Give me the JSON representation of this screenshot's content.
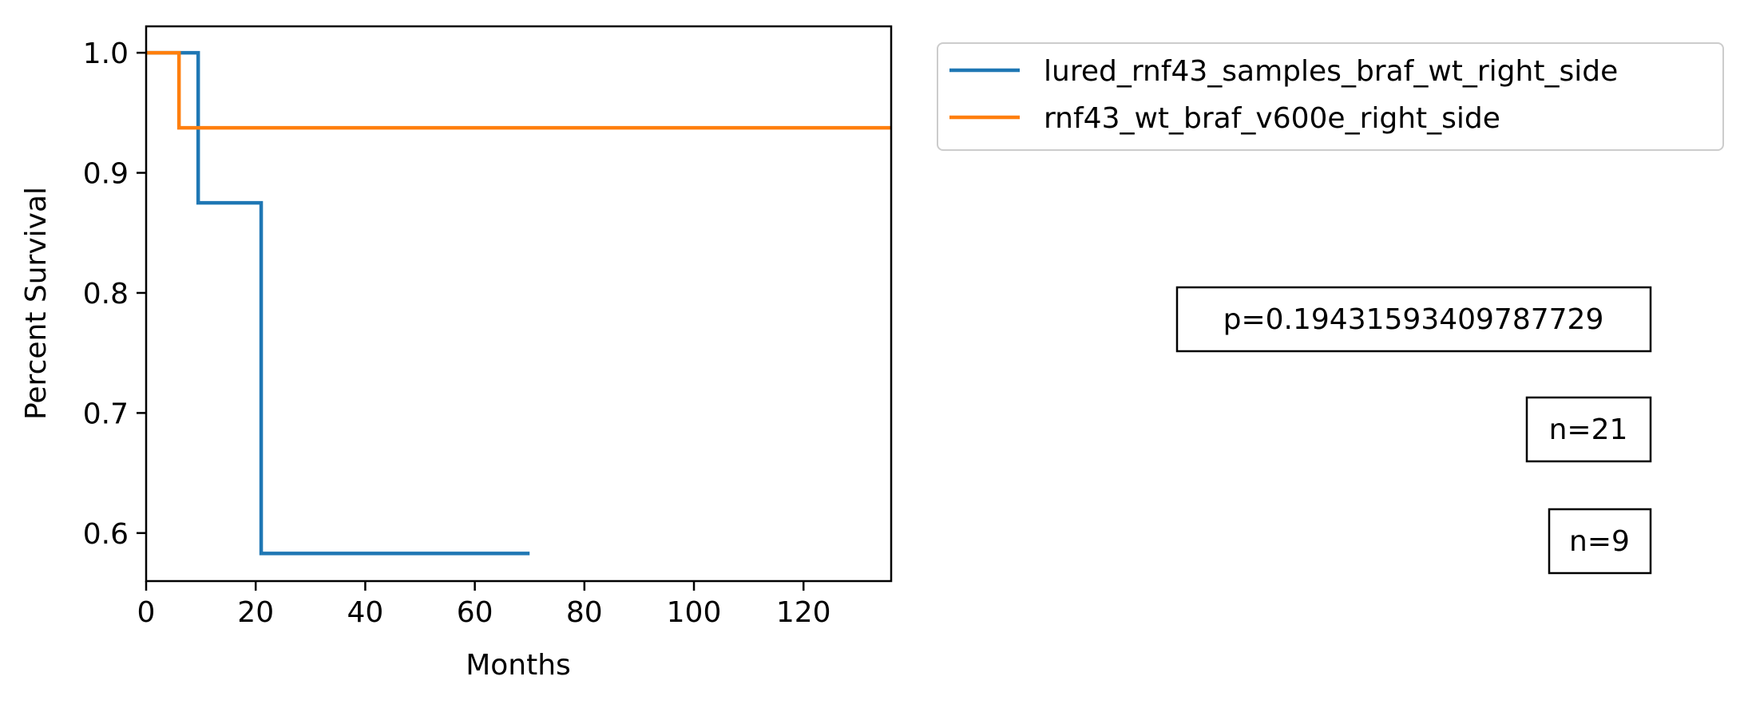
{
  "chart_data": {
    "type": "line",
    "title": "",
    "xlabel": "Months",
    "ylabel": "Percent Survival",
    "xlim": [
      0,
      136
    ],
    "ylim": [
      0.56,
      1.022
    ],
    "xticks": [
      0,
      20,
      40,
      60,
      80,
      100,
      120
    ],
    "yticks": [
      0.6,
      0.7,
      0.8,
      0.9,
      1.0
    ],
    "xtick_labels": [
      "0",
      "20",
      "40",
      "60",
      "80",
      "100",
      "120"
    ],
    "ytick_labels": [
      "0.6",
      "0.7",
      "0.8",
      "0.9",
      "1.0"
    ],
    "grid": false,
    "legend_position": "upper-right-outside",
    "series": [
      {
        "name": "lured_rnf43_samples_braf_wt_right_side",
        "color": "#1f77b4",
        "step": "post",
        "x": [
          0,
          9.5,
          21,
          70
        ],
        "y": [
          1.0,
          0.875,
          0.583,
          0.583
        ]
      },
      {
        "name": "rnf43_wt_braf_v600e_right_side",
        "color": "#ff7f0e",
        "step": "post",
        "x": [
          0,
          6,
          136
        ],
        "y": [
          1.0,
          0.9375,
          0.9375
        ]
      }
    ],
    "annotations": [
      "p=0.19431593409787729",
      "n=21",
      "n=9"
    ]
  }
}
